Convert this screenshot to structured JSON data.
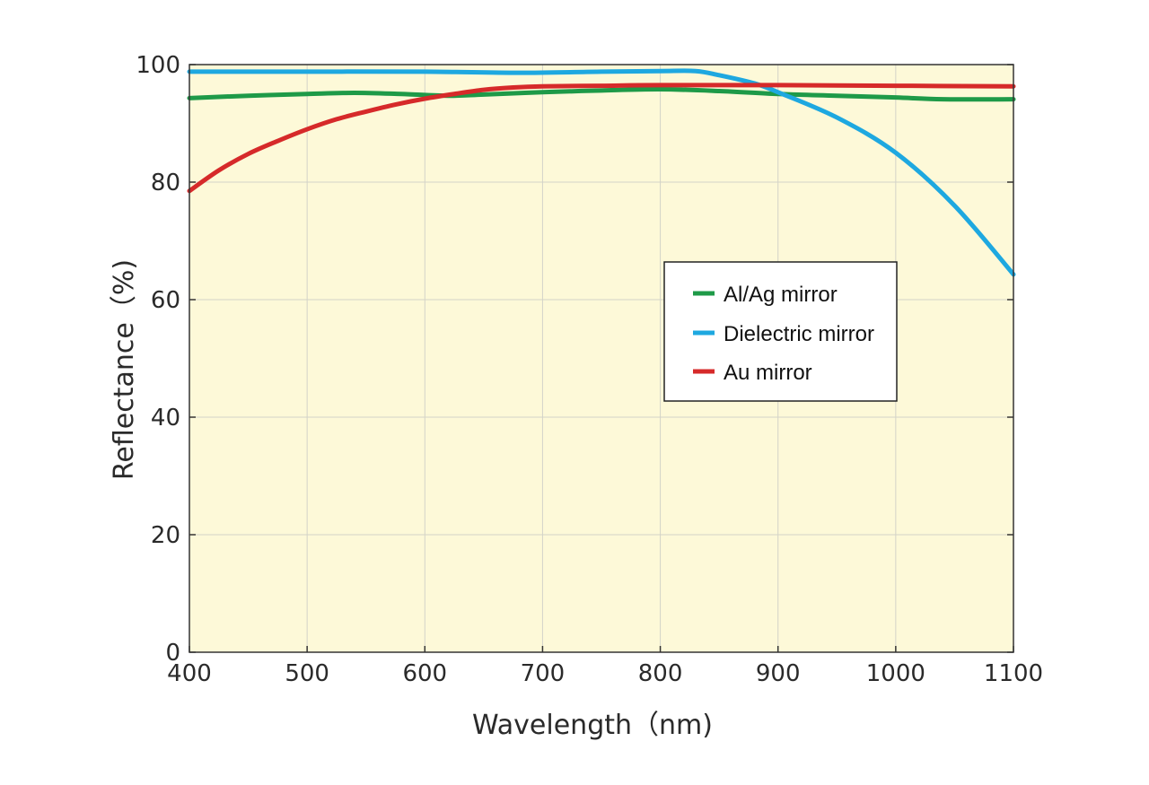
{
  "chart_data": {
    "type": "line",
    "title": "",
    "xlabel": "Wavelength（nm)",
    "ylabel": "Reflectance（%)",
    "xlim": [
      400,
      1100
    ],
    "ylim": [
      0,
      100
    ],
    "xticks": [
      400,
      500,
      600,
      700,
      800,
      900,
      1000,
      1100
    ],
    "yticks": [
      0,
      20,
      40,
      60,
      80,
      100
    ],
    "grid": true,
    "legend_position": "center-right",
    "plot_background": "#fdf9d8",
    "series": [
      {
        "name": "Al/Ag mirror",
        "color": "#1e9a48",
        "x": [
          400,
          450,
          500,
          540,
          580,
          620,
          650,
          700,
          750,
          800,
          850,
          900,
          950,
          1000,
          1040,
          1100
        ],
        "y": [
          94.3,
          94.7,
          95.0,
          95.2,
          95.0,
          94.7,
          94.9,
          95.3,
          95.6,
          95.8,
          95.5,
          95.0,
          94.7,
          94.4,
          94.1,
          94.1
        ]
      },
      {
        "name": "Dielectric mirror",
        "color": "#1ea8e0",
        "x": [
          400,
          500,
          600,
          680,
          750,
          800,
          830,
          850,
          880,
          900,
          950,
          1000,
          1050,
          1100
        ],
        "y": [
          98.8,
          98.8,
          98.8,
          98.6,
          98.8,
          98.9,
          98.9,
          98.2,
          96.8,
          95.3,
          91.0,
          85.0,
          76.0,
          64.3
        ]
      },
      {
        "name": "Au mirror",
        "color": "#d62a2a",
        "x": [
          400,
          425,
          450,
          475,
          500,
          525,
          550,
          575,
          600,
          625,
          650,
          675,
          700,
          750,
          800,
          900,
          1000,
          1100
        ],
        "y": [
          78.5,
          82.0,
          84.8,
          87.0,
          89.0,
          90.7,
          92.0,
          93.2,
          94.2,
          95.0,
          95.7,
          96.1,
          96.3,
          96.4,
          96.5,
          96.5,
          96.4,
          96.3
        ]
      }
    ]
  }
}
